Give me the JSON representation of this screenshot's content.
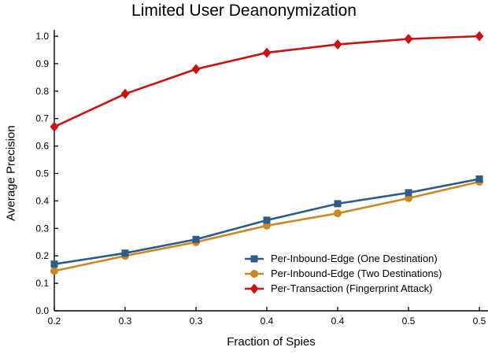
{
  "chart_data": {
    "type": "line",
    "title": "Limited User Deanonymization",
    "xlabel": "Fraction of Spies",
    "ylabel": "Average Precision",
    "x": [
      0.2,
      0.25,
      0.3,
      0.35,
      0.4,
      0.45,
      0.5
    ],
    "x_tick_labels": [
      "0.2",
      "0.3",
      "0.3",
      "0.4",
      "0.4",
      "0.5",
      "0.5"
    ],
    "y_tick_labels": [
      "0.0",
      "0.1",
      "0.2",
      "0.3",
      "0.4",
      "0.5",
      "0.6",
      "0.7",
      "0.8",
      "0.9",
      "1.0"
    ],
    "xlim": [
      0.2,
      0.5
    ],
    "ylim": [
      0.0,
      1.0
    ],
    "grid": false,
    "legend_position": "lower right inside, no border",
    "series": [
      {
        "name": "Per-Inbound-Edge (One Destination)",
        "marker": "square",
        "color": "#2e5b8a",
        "values": [
          0.17,
          0.21,
          0.26,
          0.33,
          0.39,
          0.43,
          0.48
        ]
      },
      {
        "name": "Per-Inbound-Edge (Two Destinations)",
        "marker": "circle",
        "color": "#cc8820",
        "values": [
          0.145,
          0.2,
          0.25,
          0.31,
          0.355,
          0.41,
          0.47
        ]
      },
      {
        "name": "Per-Transaction (Fingerprint Attack)",
        "marker": "diamond",
        "color": "#cc1111",
        "values": [
          0.67,
          0.79,
          0.88,
          0.94,
          0.97,
          0.99,
          1.0
        ]
      }
    ]
  }
}
